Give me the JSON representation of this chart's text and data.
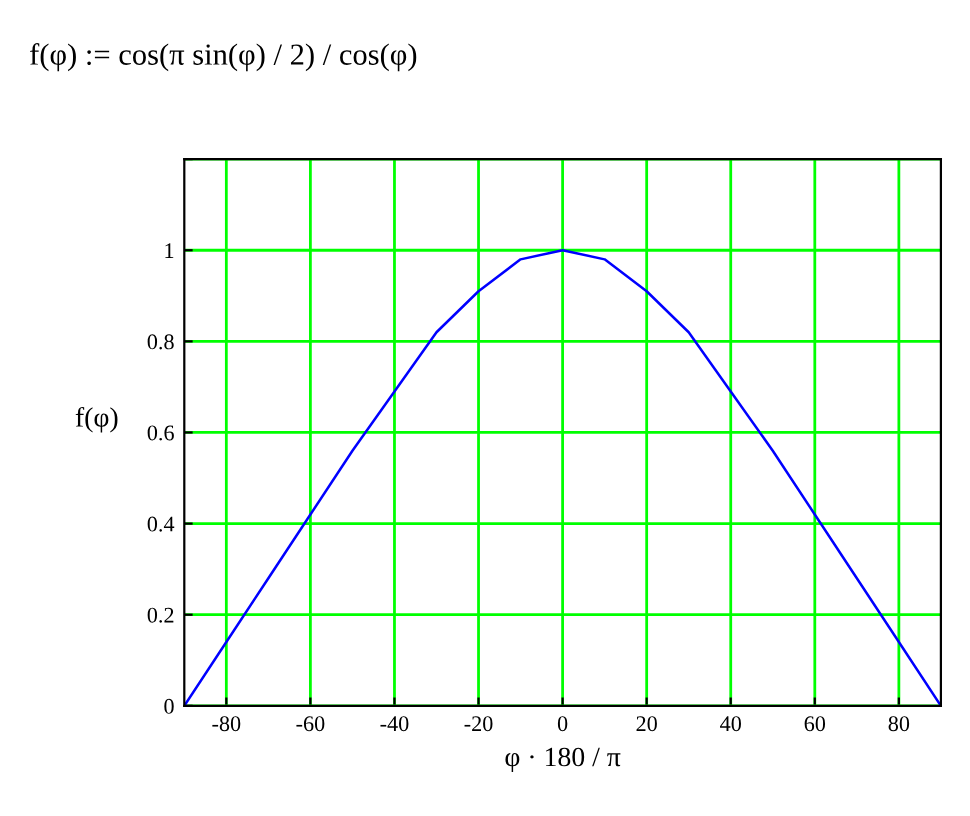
{
  "chart_data": {
    "type": "line",
    "title": "f(φ) := cos(π sin(φ) / 2) / cos(φ)",
    "xlabel": "φ · 180 / π",
    "ylabel": "f(φ)",
    "x": [
      -90,
      -80,
      -70,
      -60,
      -50,
      -40,
      -30,
      -20,
      -10,
      0,
      10,
      20,
      30,
      40,
      50,
      60,
      70,
      80,
      90
    ],
    "series": [
      {
        "color": "#0000ff",
        "values": [
          0,
          0.14,
          0.28,
          0.42,
          0.56,
          0.69,
          0.82,
          0.91,
          0.98,
          1,
          0.98,
          0.91,
          0.82,
          0.69,
          0.56,
          0.42,
          0.28,
          0.14,
          0
        ]
      }
    ],
    "xlim": [
      -90,
      90
    ],
    "xticks": [
      -80,
      -60,
      -40,
      -20,
      0,
      20,
      40,
      60,
      80
    ],
    "ylim": [
      0,
      1.2
    ],
    "yticks": [
      0,
      0.2,
      0.4,
      0.6,
      0.8,
      1,
      {
        "value": 1.2,
        "label": null
      }
    ],
    "grid": true,
    "marker": "none",
    "line_style": "solid"
  }
}
